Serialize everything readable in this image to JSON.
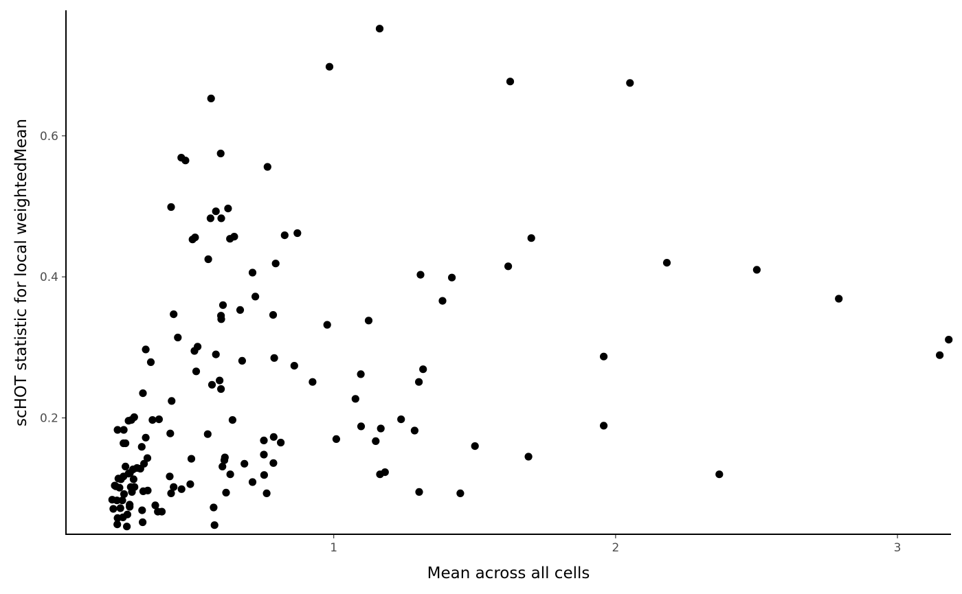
{
  "chart_data": {
    "type": "scatter",
    "xlabel": "Mean across all cells",
    "ylabel": "scHOT statistic for local weightedMean",
    "xlim": [
      0.05,
      3.19
    ],
    "ylim": [
      0.035,
      0.778
    ],
    "xticks": [
      1,
      2,
      3
    ],
    "yticks": [
      0.2,
      0.4,
      0.6
    ],
    "xtick_labels": [
      "1",
      "2",
      "3"
    ],
    "ytick_labels": [
      "0.2",
      "0.4",
      "0.6"
    ],
    "grid": false,
    "legend": "none",
    "point_color": "#000000",
    "points": [
      [
        1.163,
        0.752
      ],
      [
        0.985,
        0.698
      ],
      [
        1.626,
        0.677
      ],
      [
        2.051,
        0.675
      ],
      [
        0.565,
        0.653
      ],
      [
        0.599,
        0.575
      ],
      [
        0.459,
        0.569
      ],
      [
        0.474,
        0.565
      ],
      [
        0.765,
        0.556
      ],
      [
        0.423,
        0.499
      ],
      [
        0.625,
        0.497
      ],
      [
        0.582,
        0.493
      ],
      [
        0.563,
        0.483
      ],
      [
        0.601,
        0.483
      ],
      [
        0.871,
        0.462
      ],
      [
        0.826,
        0.459
      ],
      [
        0.647,
        0.457
      ],
      [
        0.632,
        0.454
      ],
      [
        0.508,
        0.456
      ],
      [
        0.499,
        0.453
      ],
      [
        1.701,
        0.455
      ],
      [
        0.555,
        0.425
      ],
      [
        2.182,
        0.42
      ],
      [
        0.794,
        0.419
      ],
      [
        1.619,
        0.415
      ],
      [
        2.501,
        0.41
      ],
      [
        0.712,
        0.406
      ],
      [
        1.308,
        0.403
      ],
      [
        1.419,
        0.399
      ],
      [
        0.722,
        0.372
      ],
      [
        2.792,
        0.369
      ],
      [
        1.386,
        0.366
      ],
      [
        0.607,
        0.36
      ],
      [
        0.668,
        0.353
      ],
      [
        0.432,
        0.347
      ],
      [
        0.785,
        0.346
      ],
      [
        0.6,
        0.345
      ],
      [
        0.601,
        0.34
      ],
      [
        0.977,
        0.332
      ],
      [
        1.124,
        0.338
      ],
      [
        0.447,
        0.314
      ],
      [
        3.182,
        0.311
      ],
      [
        0.517,
        0.301
      ],
      [
        0.333,
        0.297
      ],
      [
        0.506,
        0.295
      ],
      [
        0.582,
        0.29
      ],
      [
        1.958,
        0.287
      ],
      [
        3.15,
        0.289
      ],
      [
        0.789,
        0.285
      ],
      [
        0.351,
        0.279
      ],
      [
        0.675,
        0.281
      ],
      [
        0.86,
        0.274
      ],
      [
        1.317,
        0.269
      ],
      [
        0.512,
        0.266
      ],
      [
        1.096,
        0.262
      ],
      [
        0.595,
        0.253
      ],
      [
        0.925,
        0.251
      ],
      [
        1.302,
        0.251
      ],
      [
        0.568,
        0.247
      ],
      [
        0.6,
        0.241
      ],
      [
        0.323,
        0.235
      ],
      [
        1.077,
        0.227
      ],
      [
        0.425,
        0.224
      ],
      [
        0.292,
        0.201
      ],
      [
        0.357,
        0.197
      ],
      [
        0.38,
        0.198
      ],
      [
        0.641,
        0.197
      ],
      [
        1.239,
        0.198
      ],
      [
        0.282,
        0.197
      ],
      [
        0.272,
        0.196
      ],
      [
        1.958,
        0.189
      ],
      [
        1.097,
        0.188
      ],
      [
        1.167,
        0.185
      ],
      [
        0.233,
        0.183
      ],
      [
        0.255,
        0.183
      ],
      [
        0.42,
        0.178
      ],
      [
        0.553,
        0.177
      ],
      [
        1.287,
        0.182
      ],
      [
        0.787,
        0.173
      ],
      [
        0.333,
        0.172
      ],
      [
        1.009,
        0.17
      ],
      [
        0.752,
        0.168
      ],
      [
        1.149,
        0.167
      ],
      [
        0.261,
        0.164
      ],
      [
        0.254,
        0.164
      ],
      [
        0.812,
        0.165
      ],
      [
        1.501,
        0.16
      ],
      [
        0.319,
        0.159
      ],
      [
        0.752,
        0.148
      ],
      [
        1.691,
        0.145
      ],
      [
        0.614,
        0.144
      ],
      [
        0.339,
        0.143
      ],
      [
        0.495,
        0.142
      ],
      [
        0.612,
        0.14
      ],
      [
        0.786,
        0.136
      ],
      [
        0.683,
        0.135
      ],
      [
        0.327,
        0.135
      ],
      [
        0.261,
        0.131
      ],
      [
        0.605,
        0.131
      ],
      [
        0.302,
        0.129
      ],
      [
        0.288,
        0.127
      ],
      [
        0.314,
        0.128
      ],
      [
        0.277,
        0.122
      ],
      [
        1.182,
        0.123
      ],
      [
        0.272,
        0.121
      ],
      [
        2.368,
        0.12
      ],
      [
        0.633,
        0.12
      ],
      [
        1.164,
        0.12
      ],
      [
        0.753,
        0.119
      ],
      [
        0.418,
        0.117
      ],
      [
        0.254,
        0.117
      ],
      [
        0.236,
        0.114
      ],
      [
        0.245,
        0.113
      ],
      [
        0.29,
        0.113
      ],
      [
        0.712,
        0.109
      ],
      [
        0.491,
        0.106
      ],
      [
        0.223,
        0.104
      ],
      [
        0.24,
        0.101
      ],
      [
        0.28,
        0.102
      ],
      [
        0.293,
        0.102
      ],
      [
        0.432,
        0.102
      ],
      [
        0.46,
        0.099
      ],
      [
        0.227,
        0.103
      ],
      [
        0.34,
        0.097
      ],
      [
        0.324,
        0.096
      ],
      [
        0.284,
        0.095
      ],
      [
        0.423,
        0.093
      ],
      [
        0.618,
        0.094
      ],
      [
        1.303,
        0.095
      ],
      [
        1.449,
        0.093
      ],
      [
        0.762,
        0.093
      ],
      [
        0.256,
        0.092
      ],
      [
        0.214,
        0.084
      ],
      [
        0.231,
        0.083
      ],
      [
        0.25,
        0.083
      ],
      [
        0.276,
        0.077
      ],
      [
        0.367,
        0.076
      ],
      [
        0.276,
        0.074
      ],
      [
        0.243,
        0.072
      ],
      [
        0.218,
        0.071
      ],
      [
        0.574,
        0.073
      ],
      [
        0.32,
        0.069
      ],
      [
        0.376,
        0.067
      ],
      [
        0.39,
        0.067
      ],
      [
        0.268,
        0.063
      ],
      [
        0.252,
        0.059
      ],
      [
        0.233,
        0.058
      ],
      [
        0.322,
        0.052
      ],
      [
        0.232,
        0.049
      ],
      [
        0.266,
        0.046
      ],
      [
        0.577,
        0.048
      ]
    ]
  }
}
